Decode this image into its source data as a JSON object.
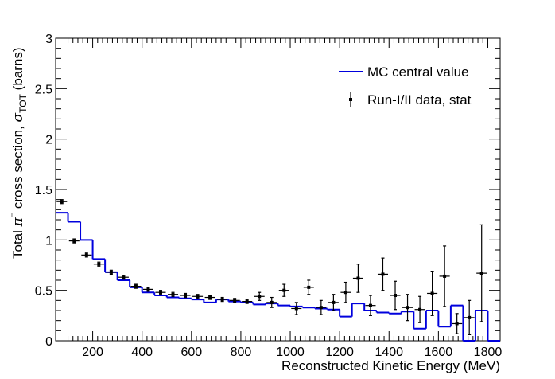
{
  "chart_data": {
    "type": "line",
    "xlabel": "Reconstructed Kinetic Energy (MeV)",
    "ylabel_parts": [
      "Total ",
      "π",
      "⁻",
      " cross section, ",
      "σ",
      "TOT",
      " (barns)"
    ],
    "xlim": [
      50,
      1850
    ],
    "ylim": [
      0,
      3
    ],
    "x_ticks": [
      200,
      400,
      600,
      800,
      1000,
      1200,
      1400,
      1600,
      1800
    ],
    "y_ticks": [
      0,
      0.5,
      1,
      1.5,
      2,
      2.5,
      3
    ],
    "y_tick_labels": [
      "0",
      "0.5",
      "1",
      "1.5",
      "2",
      "2.5",
      "3"
    ],
    "bin_width": 50,
    "grid": false,
    "legend_position": "top-right",
    "series": [
      {
        "name": "MC central value",
        "type": "histogram-step",
        "color": "#0000dd",
        "x_centers": [
          75,
          125,
          175,
          225,
          275,
          325,
          375,
          425,
          475,
          525,
          575,
          625,
          675,
          725,
          775,
          825,
          875,
          925,
          975,
          1025,
          1075,
          1125,
          1175,
          1225,
          1275,
          1325,
          1375,
          1425,
          1475,
          1525,
          1575,
          1625,
          1675,
          1725,
          1775,
          1825
        ],
        "values": [
          1.27,
          1.18,
          1.0,
          0.81,
          0.68,
          0.6,
          0.53,
          0.48,
          0.45,
          0.43,
          0.42,
          0.41,
          0.38,
          0.41,
          0.39,
          0.38,
          0.36,
          0.37,
          0.35,
          0.34,
          0.33,
          0.32,
          0.31,
          0.24,
          0.37,
          0.3,
          0.28,
          0.27,
          0.29,
          0.12,
          0.3,
          0.14,
          0.35,
          0.0,
          0.3,
          0.0
        ]
      },
      {
        "name": "Run-I/II data, stat",
        "type": "errorbar",
        "color": "#000000",
        "x": [
          75,
          125,
          175,
          225,
          275,
          325,
          375,
          425,
          475,
          525,
          575,
          625,
          675,
          725,
          775,
          825,
          875,
          925,
          975,
          1025,
          1075,
          1125,
          1175,
          1225,
          1275,
          1325,
          1375,
          1425,
          1475,
          1525,
          1575,
          1625,
          1675,
          1725,
          1775
        ],
        "y": [
          1.38,
          0.99,
          0.85,
          0.76,
          0.68,
          0.63,
          0.54,
          0.51,
          0.48,
          0.46,
          0.45,
          0.44,
          0.43,
          0.41,
          0.4,
          0.39,
          0.44,
          0.38,
          0.5,
          0.32,
          0.53,
          0.33,
          0.38,
          0.48,
          0.62,
          0.35,
          0.66,
          0.45,
          0.33,
          0.31,
          0.47,
          0.64,
          0.17,
          0.23,
          0.67
        ],
        "y_err": [
          0.02,
          0.02,
          0.02,
          0.02,
          0.02,
          0.02,
          0.02,
          0.02,
          0.02,
          0.02,
          0.02,
          0.02,
          0.02,
          0.02,
          0.02,
          0.02,
          0.04,
          0.05,
          0.06,
          0.06,
          0.07,
          0.07,
          0.08,
          0.1,
          0.14,
          0.1,
          0.16,
          0.14,
          0.13,
          0.13,
          0.22,
          0.3,
          0.1,
          0.17,
          0.48
        ]
      }
    ]
  }
}
